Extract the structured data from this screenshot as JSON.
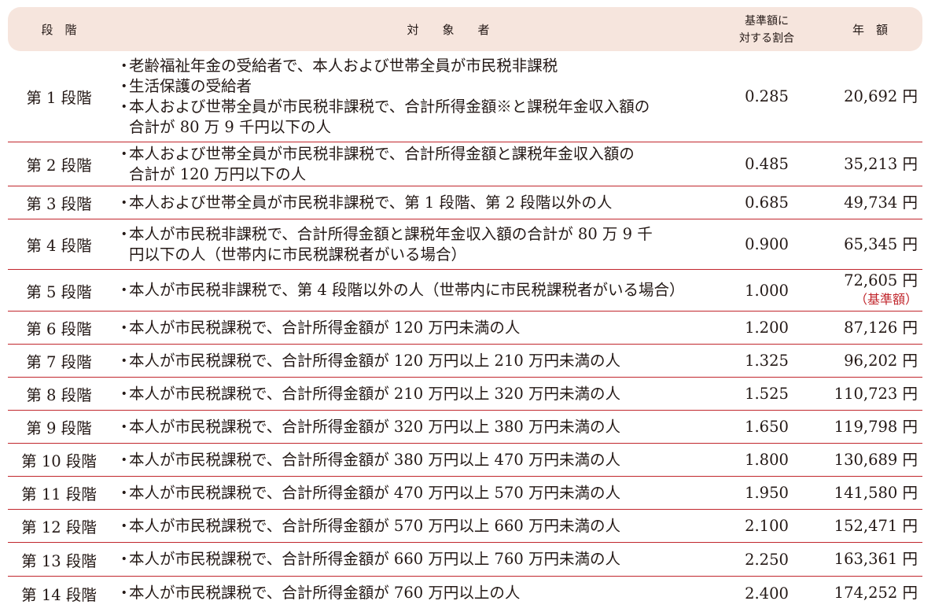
{
  "header": {
    "stage": "段　階",
    "target": "対　　象　　者",
    "ratio": "基準額に\n対する割合",
    "amount": "年　額"
  },
  "rows": [
    {
      "stage": "第 1 段階",
      "items": [
        "老齢福祉年金の受給者で、本人および世帯全員が市民税非課税",
        "生活保護の受給者",
        "本人および世帯全員が市民税非課税で、合計所得金額※と課税年金収入額の\n合計が 80 万 9 千円以下の人"
      ],
      "ratio": "0.285",
      "amount": "20,692 円",
      "note": ""
    },
    {
      "stage": "第 2 段階",
      "items": [
        "本人および世帯全員が市民税非課税で、合計所得金額と課税年金収入額の\n合計が 120 万円以下の人"
      ],
      "ratio": "0.485",
      "amount": "35,213 円",
      "note": ""
    },
    {
      "stage": "第 3 段階",
      "items": [
        "本人および世帯全員が市民税非課税で、第 1 段階、第 2 段階以外の人"
      ],
      "ratio": "0.685",
      "amount": "49,734 円",
      "note": ""
    },
    {
      "stage": "第 4 段階",
      "items": [
        "本人が市民税非課税で、合計所得金額と課税年金収入額の合計が 80 万 9 千\n円以下の人（世帯内に市民税課税者がいる場合）"
      ],
      "ratio": "0.900",
      "amount": "65,345 円",
      "note": ""
    },
    {
      "stage": "第 5 段階",
      "items": [
        "本人が市民税非課税で、第 4 段階以外の人（世帯内に市民税課税者がいる場合）"
      ],
      "ratio": "1.000",
      "amount": "72,605 円",
      "note": "（基準額）"
    },
    {
      "stage": "第 6 段階",
      "items": [
        "本人が市民税課税で、合計所得金額が 120 万円未満の人"
      ],
      "ratio": "1.200",
      "amount": "87,126 円",
      "note": ""
    },
    {
      "stage": "第 7 段階",
      "items": [
        "本人が市民税課税で、合計所得金額が 120 万円以上 210 万円未満の人"
      ],
      "ratio": "1.325",
      "amount": "96,202 円",
      "note": ""
    },
    {
      "stage": "第 8 段階",
      "items": [
        "本人が市民税課税で、合計所得金額が 210 万円以上 320 万円未満の人"
      ],
      "ratio": "1.525",
      "amount": "110,723 円",
      "note": ""
    },
    {
      "stage": "第 9 段階",
      "items": [
        "本人が市民税課税で、合計所得金額が 320 万円以上 380 万円未満の人"
      ],
      "ratio": "1.650",
      "amount": "119,798 円",
      "note": ""
    },
    {
      "stage": "第 10 段階",
      "items": [
        "本人が市民税課税で、合計所得金額が 380 万円以上 470 万円未満の人"
      ],
      "ratio": "1.800",
      "amount": "130,689 円",
      "note": ""
    },
    {
      "stage": "第 11 段階",
      "items": [
        "本人が市民税課税で、合計所得金額が 470 万円以上 570 万円未満の人"
      ],
      "ratio": "1.950",
      "amount": "141,580 円",
      "note": ""
    },
    {
      "stage": "第 12 段階",
      "items": [
        "本人が市民税課税で、合計所得金額が 570 万円以上 660 万円未満の人"
      ],
      "ratio": "2.100",
      "amount": "152,471 円",
      "note": ""
    },
    {
      "stage": "第 13 段階",
      "items": [
        "本人が市民税課税で、合計所得金額が 660 万円以上 760 万円未満の人"
      ],
      "ratio": "2.250",
      "amount": "163,361 円",
      "note": ""
    },
    {
      "stage": "第 14 段階",
      "items": [
        "本人が市民税課税で、合計所得金額が 760 万円以上の人"
      ],
      "ratio": "2.400",
      "amount": "174,252 円",
      "note": ""
    }
  ],
  "colors": {
    "header_bg": "#f6e5dd",
    "rule": "#c1272d",
    "note": "#c1272d",
    "text": "#231815"
  }
}
